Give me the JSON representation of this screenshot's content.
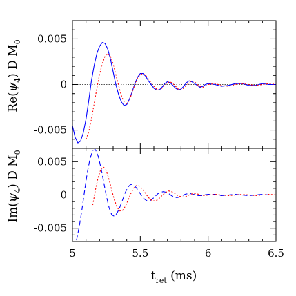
{
  "chart_data": [
    {
      "type": "line",
      "panel": "top",
      "ylabel": "Re(ψ4)  D  M0",
      "ylabel_parts": {
        "pre": "Re(",
        "psi": "ψ",
        "sub": "4",
        "post": ")  D  M",
        "m_sub": "0"
      },
      "xlim": [
        5,
        6.5
      ],
      "ylim": [
        -0.007,
        0.007
      ],
      "yticks": [
        -0.005,
        0,
        0.005
      ],
      "ytick_labels": [
        "-0.005",
        "0",
        "0.005"
      ],
      "zero_line": true,
      "series": [
        {
          "color": "#0000ff",
          "style": "solid",
          "x": [
            5.0,
            5.02,
            5.04,
            5.06,
            5.08,
            5.1,
            5.12,
            5.14,
            5.16,
            5.18,
            5.2,
            5.22,
            5.24,
            5.26,
            5.28,
            5.3,
            5.32,
            5.34,
            5.36,
            5.38,
            5.4,
            5.42,
            5.44,
            5.46,
            5.48,
            5.5,
            5.52,
            5.54,
            5.56,
            5.58,
            5.6,
            5.62,
            5.64,
            5.66,
            5.68,
            5.7,
            5.72,
            5.74,
            5.76,
            5.78,
            5.8,
            5.82,
            5.84,
            5.86,
            5.88,
            5.9,
            5.92,
            5.94,
            5.96,
            5.98,
            6.0,
            6.05,
            6.1,
            6.15,
            6.2,
            6.25,
            6.3,
            6.35,
            6.4,
            6.45,
            6.5
          ],
          "y": [
            -0.0045,
            -0.0058,
            -0.0064,
            -0.0062,
            -0.0053,
            -0.0038,
            -0.0018,
            0.0004,
            0.0021,
            0.0034,
            0.0042,
            0.0046,
            0.0045,
            0.0039,
            0.0028,
            0.0014,
            0.0,
            -0.0011,
            -0.0019,
            -0.0023,
            -0.0022,
            -0.0016,
            -0.0008,
            0.0001,
            0.0008,
            0.0012,
            0.0012,
            0.0009,
            0.0004,
            0.0,
            -0.0004,
            -0.0006,
            -0.0006,
            -0.0003,
            0.0001,
            0.0003,
            0.0002,
            -0.0001,
            -0.0004,
            -0.0006,
            -0.0005,
            -0.0002,
            0.0002,
            0.0004,
            0.0003,
            0.0001,
            -0.0001,
            -0.0003,
            -0.0002,
            0.0,
            0.0001,
            0.0,
            -0.0002,
            -0.0001,
            0.0001,
            0.0001,
            -0.0001,
            -0.0001,
            0.0001,
            0.0,
            0.0
          ]
        },
        {
          "color": "#ff0000",
          "style": "dotted",
          "x": [
            5.1,
            5.12,
            5.14,
            5.16,
            5.18,
            5.2,
            5.22,
            5.24,
            5.26,
            5.28,
            5.3,
            5.32,
            5.34,
            5.36,
            5.38,
            5.4,
            5.42,
            5.44,
            5.46,
            5.48,
            5.5,
            5.52,
            5.54,
            5.56,
            5.58,
            5.6,
            5.62,
            5.64,
            5.66,
            5.68,
            5.7,
            5.72,
            5.74,
            5.76,
            5.78,
            5.8,
            5.82,
            5.84,
            5.86,
            5.88,
            5.9,
            5.92,
            5.94,
            5.96,
            5.98,
            6.0,
            6.05,
            6.1,
            6.15,
            6.2,
            6.25,
            6.3,
            6.35,
            6.4,
            6.45,
            6.5
          ],
          "y": [
            -0.006,
            -0.0052,
            -0.0038,
            -0.0021,
            -0.0004,
            0.0011,
            0.0023,
            0.0031,
            0.0034,
            0.0031,
            0.0023,
            0.0011,
            -0.0001,
            -0.0012,
            -0.0019,
            -0.0021,
            -0.0017,
            -0.0009,
            0.0,
            0.0007,
            0.0011,
            0.0012,
            0.001,
            0.0006,
            0.0002,
            -0.0002,
            -0.0005,
            -0.0006,
            -0.0004,
            -0.0001,
            0.0002,
            0.0003,
            0.0001,
            -0.0002,
            -0.0005,
            -0.0006,
            -0.0004,
            -0.0001,
            0.0002,
            0.0004,
            0.0003,
            0.0,
            -0.0002,
            -0.0003,
            -0.0002,
            0.0,
            0.0001,
            -0.0001,
            -0.0002,
            0.0,
            0.0001,
            0.0,
            -0.0001,
            0.0,
            0.0001,
            0.0
          ]
        }
      ]
    },
    {
      "type": "line",
      "panel": "bottom",
      "ylabel": "Im(ψ4)  D  M0",
      "ylabel_parts": {
        "pre": "Im(",
        "psi": "ψ",
        "sub": "4",
        "post": ")  D  M",
        "m_sub": "0"
      },
      "xlim": [
        5,
        6.5
      ],
      "ylim": [
        -0.007,
        0.007
      ],
      "yticks": [
        -0.005,
        0,
        0.005
      ],
      "ytick_labels": [
        "-0.005",
        "0",
        "0.005"
      ],
      "xticks": [
        5,
        5.5,
        6,
        6.5
      ],
      "xtick_labels": [
        "5",
        "5.5",
        "6",
        "6.5"
      ],
      "xlabel": "t_ret  (ms)",
      "xlabel_parts": {
        "main": "t",
        "sub": "ret",
        "post": "  (ms)"
      },
      "zero_line": true,
      "series": [
        {
          "color": "#0000ff",
          "style": "dashed",
          "x": [
            5.03,
            5.05,
            5.07,
            5.09,
            5.11,
            5.13,
            5.15,
            5.17,
            5.19,
            5.21,
            5.23,
            5.25,
            5.27,
            5.29,
            5.31,
            5.33,
            5.35,
            5.37,
            5.39,
            5.41,
            5.43,
            5.45,
            5.47,
            5.49,
            5.51,
            5.53,
            5.55,
            5.57,
            5.59,
            5.61,
            5.63,
            5.65,
            5.67,
            5.69,
            5.71,
            5.73,
            5.75,
            5.77,
            5.79,
            5.81,
            5.83,
            5.85,
            5.87,
            5.89,
            5.91,
            5.93,
            5.95,
            5.97,
            6.0,
            6.05,
            6.1,
            6.15,
            6.2,
            6.25,
            6.3,
            6.35,
            6.4,
            6.45,
            6.5
          ],
          "y": [
            -0.0068,
            -0.0048,
            -0.0022,
            0.0007,
            0.0034,
            0.0055,
            0.0067,
            0.0068,
            0.0058,
            0.0041,
            0.002,
            -0.0002,
            -0.0019,
            -0.003,
            -0.0032,
            -0.0027,
            -0.0018,
            -0.0007,
            0.0004,
            0.0012,
            0.0016,
            0.0015,
            0.0011,
            0.0005,
            -0.0001,
            -0.0006,
            -0.0009,
            -0.0009,
            -0.0006,
            -0.0002,
            0.0002,
            0.0004,
            0.0005,
            0.0004,
            0.0002,
            -0.0001,
            -0.0003,
            -0.0004,
            -0.0003,
            -0.0001,
            0.0001,
            0.0002,
            0.0002,
            0.0001,
            0.0,
            -0.0001,
            -0.0001,
            0.0,
            0.0001,
            0.0001,
            -0.0001,
            0.0,
            0.0001,
            0.0,
            -0.0001,
            0.0,
            0.0001,
            0.0,
            0.0
          ]
        },
        {
          "color": "#ff0000",
          "style": "dotted",
          "x": [
            5.15,
            5.17,
            5.19,
            5.21,
            5.23,
            5.25,
            5.27,
            5.29,
            5.31,
            5.33,
            5.35,
            5.37,
            5.39,
            5.41,
            5.43,
            5.45,
            5.47,
            5.49,
            5.51,
            5.53,
            5.55,
            5.57,
            5.59,
            5.61,
            5.63,
            5.65,
            5.67,
            5.69,
            5.71,
            5.73,
            5.75,
            5.77,
            5.79,
            5.81,
            5.83,
            5.85,
            5.87,
            5.89,
            5.91,
            5.93,
            5.95,
            5.97,
            6.0,
            6.05,
            6.1,
            6.15,
            6.2,
            6.25,
            6.3,
            6.35,
            6.4,
            6.45,
            6.5
          ],
          "y": [
            -0.0015,
            0.0008,
            0.0027,
            0.0039,
            0.0042,
            0.0036,
            0.0023,
            0.0007,
            -0.0008,
            -0.0019,
            -0.0024,
            -0.0023,
            -0.0017,
            -0.0008,
            0.0002,
            0.001,
            0.0014,
            0.0014,
            0.001,
            0.0005,
            -0.0001,
            -0.0006,
            -0.0009,
            -0.0009,
            -0.0007,
            -0.0003,
            0.0001,
            0.0004,
            0.0006,
            0.0005,
            0.0003,
            0.0,
            -0.0002,
            -0.0003,
            -0.0003,
            -0.0001,
            0.0001,
            0.0002,
            0.0002,
            0.0001,
            -0.0001,
            -0.0001,
            0.0,
            0.0001,
            0.0,
            -0.0001,
            0.0,
            0.0001,
            0.0,
            -0.0001,
            0.0,
            0.0001,
            0.0
          ]
        }
      ]
    }
  ]
}
